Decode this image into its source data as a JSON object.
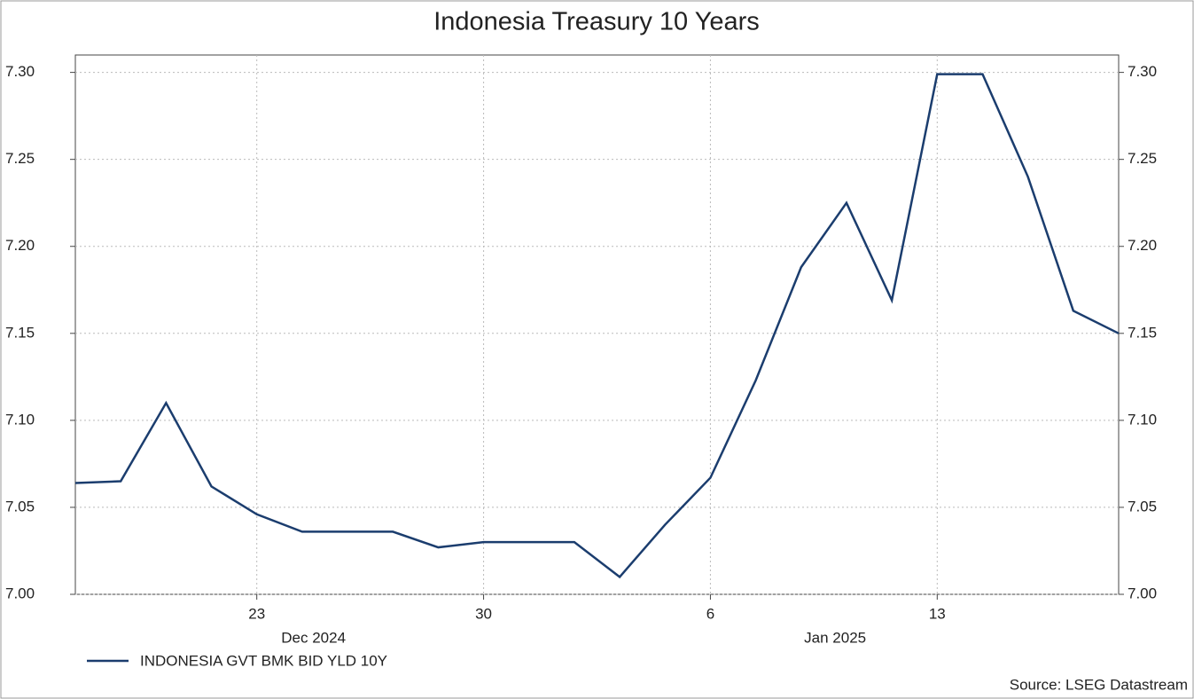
{
  "chart_data": {
    "type": "line",
    "title": "Indonesia Treasury 10 Years",
    "x": [
      "2024-12-17",
      "2024-12-18",
      "2024-12-19",
      "2024-12-20",
      "2024-12-23",
      "2024-12-24",
      "2024-12-25",
      "2024-12-26",
      "2024-12-27",
      "2024-12-30",
      "2024-12-31",
      "2025-01-01",
      "2025-01-02",
      "2025-01-03",
      "2025-01-06",
      "2025-01-07",
      "2025-01-08",
      "2025-01-09",
      "2025-01-10",
      "2025-01-13",
      "2025-01-14",
      "2025-01-15",
      "2025-01-16",
      "2025-01-17"
    ],
    "series": [
      {
        "name": "INDONESIA GVT BMK BID YLD 10Y",
        "color": "#1b3d6e",
        "values": [
          7.064,
          7.065,
          7.11,
          7.062,
          7.046,
          7.036,
          7.036,
          7.036,
          7.027,
          7.03,
          7.03,
          7.03,
          7.01,
          7.04,
          7.067,
          7.123,
          7.188,
          7.225,
          7.169,
          7.299,
          7.299,
          7.24,
          7.163,
          7.15
        ]
      }
    ],
    "xticks": [
      {
        "value": "2024-12-23",
        "label": "23"
      },
      {
        "value": "2024-12-30",
        "label": "30"
      },
      {
        "value": "2025-01-06",
        "label": "6"
      },
      {
        "value": "2025-01-13",
        "label": "13"
      }
    ],
    "month_labels": [
      {
        "value": "2024-12",
        "label": "Dec 2024"
      },
      {
        "value": "2025-01",
        "label": "Jan 2025"
      }
    ],
    "ylim": [
      7.0,
      7.31
    ],
    "yticks": [
      {
        "value": 7,
        "label": "7.00"
      },
      {
        "value": 7.05,
        "label": "7.05"
      },
      {
        "value": 7.1,
        "label": "7.10"
      },
      {
        "value": 7.15,
        "label": "7.15"
      },
      {
        "value": 7.2,
        "label": "7.20"
      },
      {
        "value": 7.25,
        "label": "7.25"
      },
      {
        "value": 7.3,
        "label": "7.30"
      }
    ],
    "grid": true,
    "source": "Source: LSEG Datastream"
  }
}
